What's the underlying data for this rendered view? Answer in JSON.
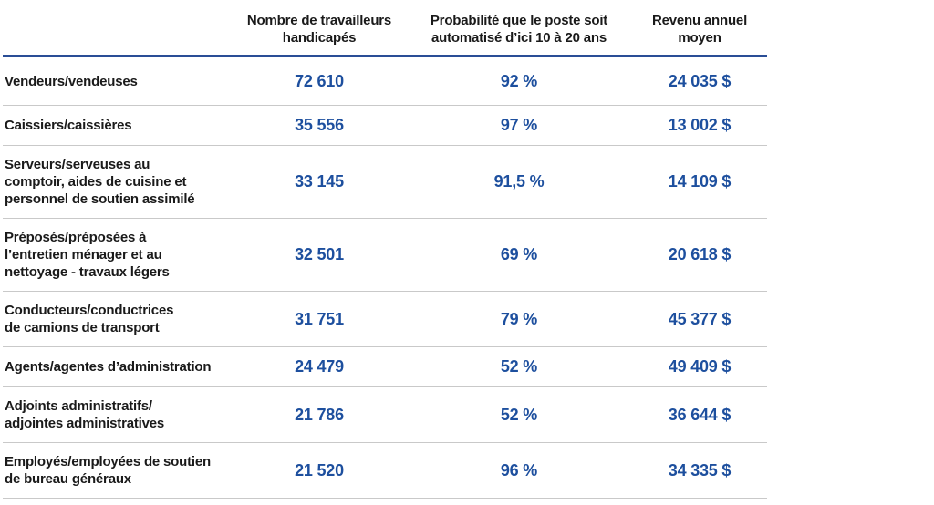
{
  "colors": {
    "accent_blue": "#1d4f9e",
    "header_rule_blue": "#2a4d96",
    "row_separator_gray": "#c9c9c9",
    "text_dark": "#1a1a1a"
  },
  "chart_data": {
    "type": "table",
    "columns": [
      "",
      "Nombre de travailleurs\nhandicapés",
      "Probabilité que le poste soit\nautomatisé d’ici 10 à 20 ans",
      "Revenu annuel\nmoyen"
    ],
    "rows": [
      {
        "label": "Vendeurs/vendeuses",
        "workers": "72 610",
        "probability": "92 %",
        "income": "24 035 $"
      },
      {
        "label": "Caissiers/caissières",
        "workers": "35 556",
        "probability": "97 %",
        "income": "13 002 $"
      },
      {
        "label": "Serveurs/serveuses au\ncomptoir, aides de cuisine et\npersonnel de soutien assimilé",
        "workers": "33 145",
        "probability": "91,5 %",
        "income": "14 109 $"
      },
      {
        "label": "Préposés/préposées à\nl’entretien ménager et au\nnettoyage - travaux légers",
        "workers": "32 501",
        "probability": "69 %",
        "income": "20 618 $"
      },
      {
        "label": "Conducteurs/conductrices\nde camions de transport",
        "workers": "31 751",
        "probability": "79 %",
        "income": "45 377 $"
      },
      {
        "label": "Agents/agentes d’administration",
        "workers": "24 479",
        "probability": "52 %",
        "income": "49 409 $"
      },
      {
        "label": "Adjoints administratifs/\nadjointes administratives",
        "workers": "21 786",
        "probability": "52 %",
        "income": "36 644 $"
      },
      {
        "label": "Employés/employées de soutien\nde bureau généraux",
        "workers": "21 520",
        "probability": "96 %",
        "income": "34 335 $"
      }
    ],
    "numeric_rows": [
      {
        "label": "Vendeurs/vendeuses",
        "workers": 72610,
        "probability_pct": 92,
        "income_cad": 24035
      },
      {
        "label": "Caissiers/caissières",
        "workers": 35556,
        "probability_pct": 97,
        "income_cad": 13002
      },
      {
        "label": "Serveurs/serveuses au comptoir, aides de cuisine et personnel de soutien assimilé",
        "workers": 33145,
        "probability_pct": 91.5,
        "income_cad": 14109
      },
      {
        "label": "Préposés/préposées à l’entretien ménager et au nettoyage - travaux légers",
        "workers": 32501,
        "probability_pct": 69,
        "income_cad": 20618
      },
      {
        "label": "Conducteurs/conductrices de camions de transport",
        "workers": 31751,
        "probability_pct": 79,
        "income_cad": 45377
      },
      {
        "label": "Agents/agentes d’administration",
        "workers": 24479,
        "probability_pct": 52,
        "income_cad": 49409
      },
      {
        "label": "Adjoints administratifs/adjointes administratives",
        "workers": 21786,
        "probability_pct": 52,
        "income_cad": 36644
      },
      {
        "label": "Employés/employées de soutien de bureau généraux",
        "workers": 21520,
        "probability_pct": 96,
        "income_cad": 34335
      }
    ]
  }
}
